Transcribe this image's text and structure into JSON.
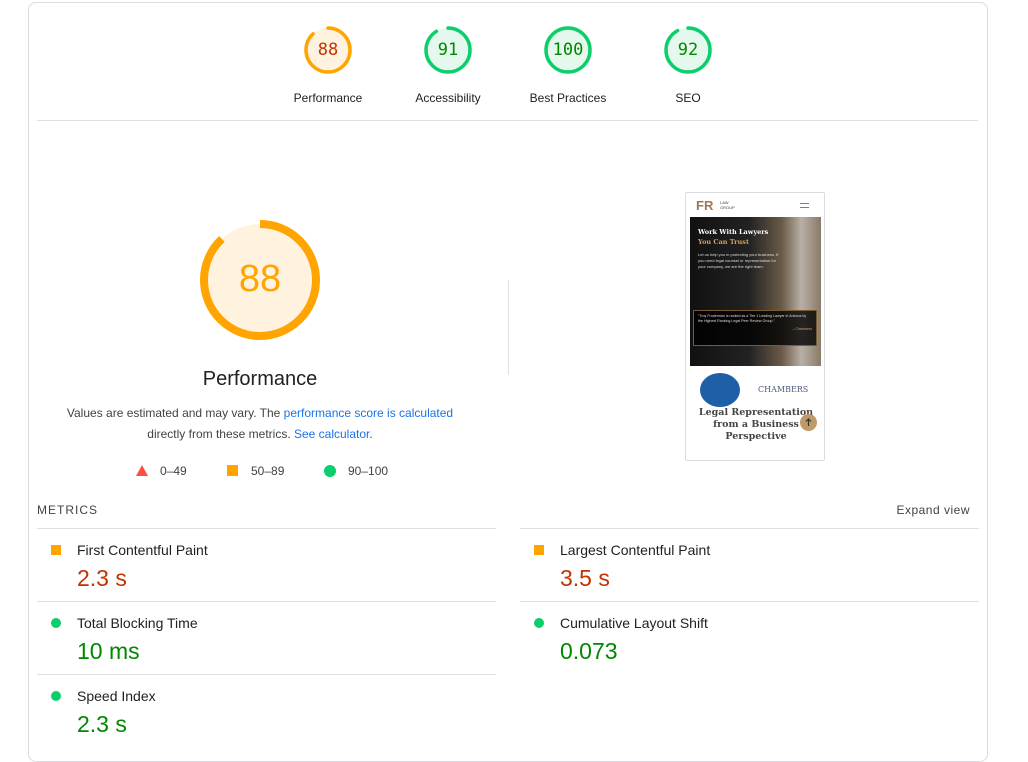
{
  "gauges": [
    {
      "label": "Performance",
      "score": 88,
      "color": "#ffa400",
      "fill": "#fff3e0",
      "text": "#c33300"
    },
    {
      "label": "Accessibility",
      "score": 91,
      "color": "#0cce6b",
      "fill": "#e5f8ee",
      "text": "#008800"
    },
    {
      "label": "Best Practices",
      "score": 100,
      "color": "#0cce6b",
      "fill": "#e5f8ee",
      "text": "#008800"
    },
    {
      "label": "SEO",
      "score": 92,
      "color": "#0cce6b",
      "fill": "#e5f8ee",
      "text": "#008800"
    }
  ],
  "main": {
    "score": 88,
    "title": "Performance",
    "desc_part1": "Values are estimated and may vary. The ",
    "desc_link1": "performance score is calculated",
    "desc_part2": "directly from these metrics. ",
    "desc_link2": "See calculator",
    "desc_end": ".",
    "legend": [
      {
        "range": "0–49",
        "shape": "triangle",
        "color": "#ff4e42"
      },
      {
        "range": "50–89",
        "shape": "square",
        "color": "#ffa400"
      },
      {
        "range": "90–100",
        "shape": "circle",
        "color": "#0cce6b"
      }
    ]
  },
  "screenshot": {
    "logo": "FR",
    "logo_sub1": "LAW",
    "logo_sub2": "GROUP",
    "heading1": "Work With Lawyers",
    "heading2": "You Can Trust",
    "body": "Let us help you in protecting your business. If you need legal counsel or representation for your company, we are the right team.",
    "quote": "\"Troy Froderman is ranked as a Tier 1 Leading Lawyer in Arizona by the Highest Ranking Legal Peer Review Group.\"",
    "quote_attr": "– Chambers",
    "chambers": "CHAMBERS",
    "section_title": "Legal Representation from a Business Perspective"
  },
  "metrics": {
    "label": "METRICS",
    "expand": "Expand view",
    "items": [
      {
        "name": "First Contentful Paint",
        "value": "2.3 s",
        "status": "average"
      },
      {
        "name": "Largest Contentful Paint",
        "value": "3.5 s",
        "status": "average"
      },
      {
        "name": "Total Blocking Time",
        "value": "10 ms",
        "status": "pass"
      },
      {
        "name": "Cumulative Layout Shift",
        "value": "0.073",
        "status": "pass"
      },
      {
        "name": "Speed Index",
        "value": "2.3 s",
        "status": "pass"
      }
    ]
  },
  "colors": {
    "average_icon": "#ffa400",
    "average_text": "#c33300",
    "pass_icon": "#0cce6b",
    "pass_text": "#008800",
    "link": "#1a73e8"
  }
}
